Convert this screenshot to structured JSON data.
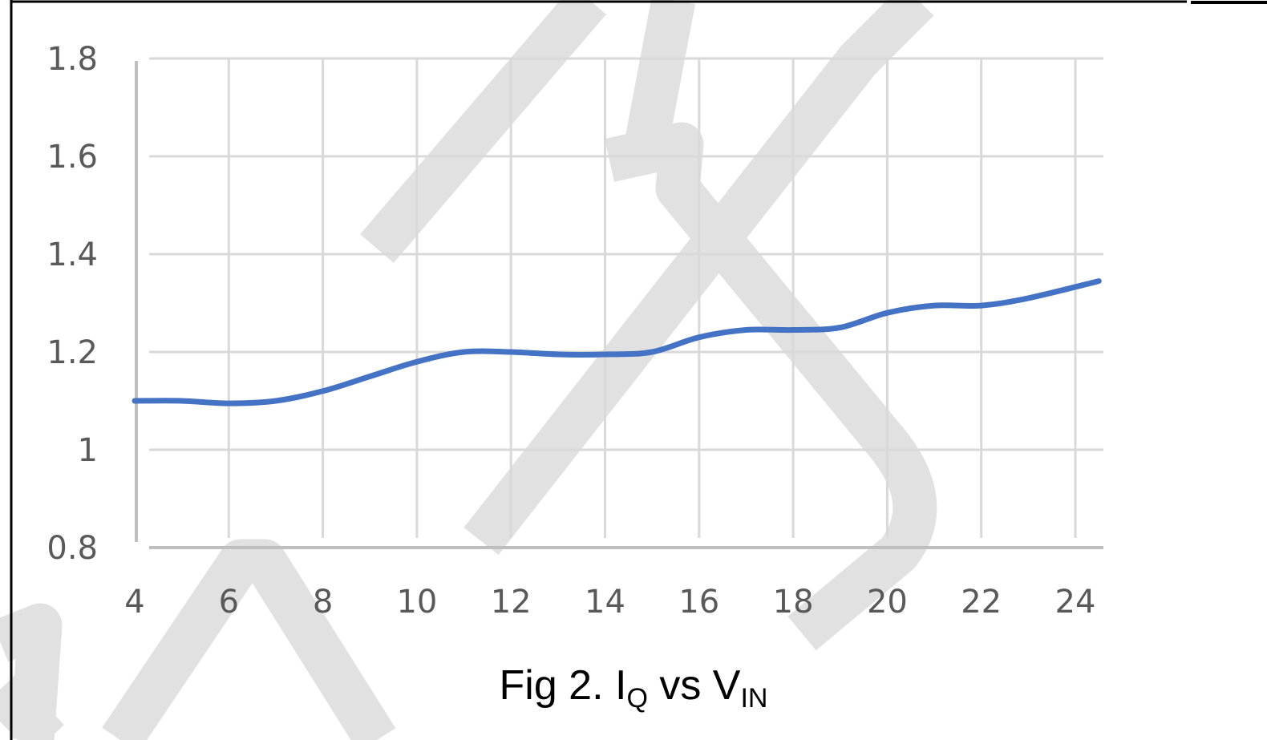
{
  "chart_data": {
    "type": "line",
    "caption": {
      "prefix": "Fig 2. I",
      "sub1": "Q",
      "middle": " vs V",
      "sub2": "IN"
    },
    "x": [
      4,
      5,
      6,
      7,
      8,
      9,
      10,
      11,
      12,
      13,
      14,
      15,
      16,
      17,
      18,
      19,
      20,
      21,
      22,
      23,
      24.5
    ],
    "series": [
      {
        "values": [
          1.1,
          1.1,
          1.095,
          1.1,
          1.12,
          1.15,
          1.18,
          1.2,
          1.2,
          1.195,
          1.195,
          1.2,
          1.23,
          1.245,
          1.245,
          1.25,
          1.28,
          1.295,
          1.295,
          1.31,
          1.345
        ],
        "color": "#4472C4"
      }
    ],
    "xlim": [
      4,
      24.5
    ],
    "ylim": [
      0.8,
      1.8
    ],
    "x_ticks": [
      "4",
      "6",
      "8",
      "10",
      "12",
      "14",
      "16",
      "18",
      "20",
      "22",
      "24"
    ],
    "y_ticks": [
      "0.8",
      "1",
      "1.2",
      "1.4",
      "1.6",
      "1.8"
    ],
    "grid": true,
    "legend": "none",
    "colors": {
      "grid": "#d9d9d9",
      "axis": "#bfbfbf",
      "tick_text": "#595959",
      "watermark": "#dcdcdc"
    }
  }
}
